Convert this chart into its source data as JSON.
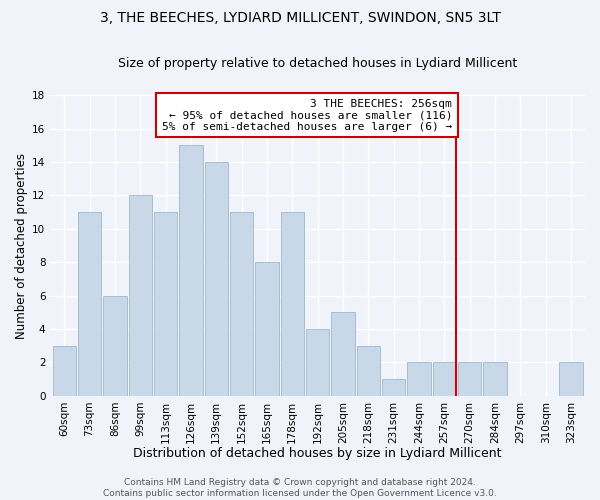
{
  "title": "3, THE BEECHES, LYDIARD MILLICENT, SWINDON, SN5 3LT",
  "subtitle": "Size of property relative to detached houses in Lydiard Millicent",
  "xlabel": "Distribution of detached houses by size in Lydiard Millicent",
  "ylabel": "Number of detached properties",
  "bar_labels": [
    "60sqm",
    "73sqm",
    "86sqm",
    "99sqm",
    "113sqm",
    "126sqm",
    "139sqm",
    "152sqm",
    "165sqm",
    "178sqm",
    "192sqm",
    "205sqm",
    "218sqm",
    "231sqm",
    "244sqm",
    "257sqm",
    "270sqm",
    "284sqm",
    "297sqm",
    "310sqm",
    "323sqm"
  ],
  "bar_heights": [
    3,
    11,
    6,
    12,
    11,
    15,
    14,
    11,
    8,
    11,
    4,
    5,
    3,
    1,
    2,
    2,
    2,
    2,
    0,
    0,
    2
  ],
  "bar_color": "#c8d8e8",
  "bar_edge_color": "#a0b8cc",
  "vline_index": 15,
  "vline_color": "#cc0000",
  "annotation_line1": "3 THE BEECHES: 256sqm",
  "annotation_line2": "← 95% of detached houses are smaller (116)",
  "annotation_line3": "5% of semi-detached houses are larger (6) →",
  "annotation_box_color": "#ffffff",
  "annotation_box_edge_color": "#cc0000",
  "ylim": [
    0,
    18
  ],
  "yticks": [
    0,
    2,
    4,
    6,
    8,
    10,
    12,
    14,
    16,
    18
  ],
  "footer_text": "Contains HM Land Registry data © Crown copyright and database right 2024.\nContains public sector information licensed under the Open Government Licence v3.0.",
  "background_color": "#f0f4fa",
  "grid_color": "#ffffff",
  "title_fontsize": 10,
  "subtitle_fontsize": 9,
  "xlabel_fontsize": 9,
  "ylabel_fontsize": 8.5,
  "tick_fontsize": 7.5,
  "annotation_fontsize": 8,
  "footer_fontsize": 6.5
}
